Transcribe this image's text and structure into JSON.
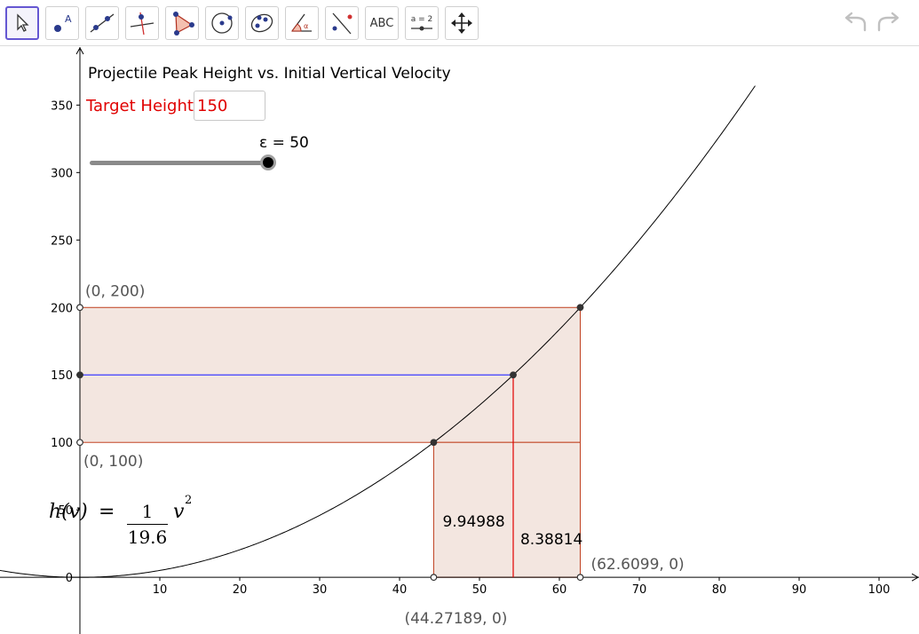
{
  "toolbar": {
    "tools": [
      {
        "name": "move-tool",
        "icon": "cursor-arrow-icon"
      },
      {
        "name": "point-tool",
        "icon": "point-icon"
      },
      {
        "name": "line-tool",
        "icon": "line-icon"
      },
      {
        "name": "perpendicular-tool",
        "icon": "perpendicular-line-icon"
      },
      {
        "name": "polygon-tool",
        "icon": "polygon-icon"
      },
      {
        "name": "circle-tool",
        "icon": "circle-icon"
      },
      {
        "name": "ellipse-tool",
        "icon": "ellipse-icon"
      },
      {
        "name": "angle-tool",
        "icon": "angle-icon"
      },
      {
        "name": "reflect-tool",
        "icon": "reflect-icon"
      },
      {
        "name": "text-tool",
        "label": "ABC"
      },
      {
        "name": "slider-tool",
        "label": "a = 2"
      },
      {
        "name": "move-view-tool",
        "icon": "move-arrows-icon"
      }
    ],
    "undo_icon": "undo-icon",
    "redo_icon": "redo-icon"
  },
  "title": "Projectile Peak Height vs. Initial Vertical Velocity",
  "target": {
    "label": "Target Height",
    "value": "150"
  },
  "slider": {
    "label": "ε = 50",
    "value": 50,
    "fraction": 1.0
  },
  "formula": {
    "lhs": "h(v)",
    "eq": "=",
    "numerator": "1",
    "denominator": "19.6",
    "var": "v",
    "exp": "2"
  },
  "colors": {
    "axis": "#000000",
    "curve": "#000000",
    "rect_fill": "#f3e6e0",
    "rect_stroke": "#c04020",
    "red_line": "#e00000",
    "blue_line": "#3c3cff",
    "point": "#333333",
    "label_gray": "#555555"
  },
  "chart_data": {
    "type": "line",
    "function": "v^2/19.6",
    "xlim": [
      -10,
      105
    ],
    "ylim": [
      -42,
      393
    ],
    "x_ticks": [
      10,
      20,
      30,
      40,
      50,
      60,
      70,
      80,
      90,
      100
    ],
    "y_ticks": [
      50,
      100,
      150,
      200,
      250,
      300,
      350
    ],
    "origin_label": "0",
    "grid": false,
    "band": {
      "y_low": 100,
      "y_high": 200,
      "x_low": 44.27189,
      "x_high": 62.6099
    },
    "target_line": {
      "y": 150,
      "x": 54.2218
    },
    "points": [
      {
        "x": 0,
        "y": 200,
        "open": true
      },
      {
        "x": 0,
        "y": 150,
        "open": false
      },
      {
        "x": 0,
        "y": 100,
        "open": true
      },
      {
        "x": 62.6099,
        "y": 200,
        "open": false
      },
      {
        "x": 54.2218,
        "y": 150,
        "open": false
      },
      {
        "x": 44.27189,
        "y": 100,
        "open": false
      },
      {
        "x": 44.27189,
        "y": 0,
        "open": true
      },
      {
        "x": 62.6099,
        "y": 0,
        "open": true
      }
    ],
    "annotations": [
      {
        "text": "(0, 200)",
        "x": 0,
        "y": 200
      },
      {
        "text": "(0, 100)",
        "x": 0,
        "y": 100
      },
      {
        "text": "(62.6099, 0)",
        "x": 62.6099,
        "y": 0
      },
      {
        "text": "(44.27189, 0)",
        "x": 44.27189,
        "y": 0
      },
      {
        "text": "9.94988",
        "x": 44.27189,
        "y": 0
      },
      {
        "text": "8.38814",
        "x": 54.2218,
        "y": 0
      }
    ]
  }
}
